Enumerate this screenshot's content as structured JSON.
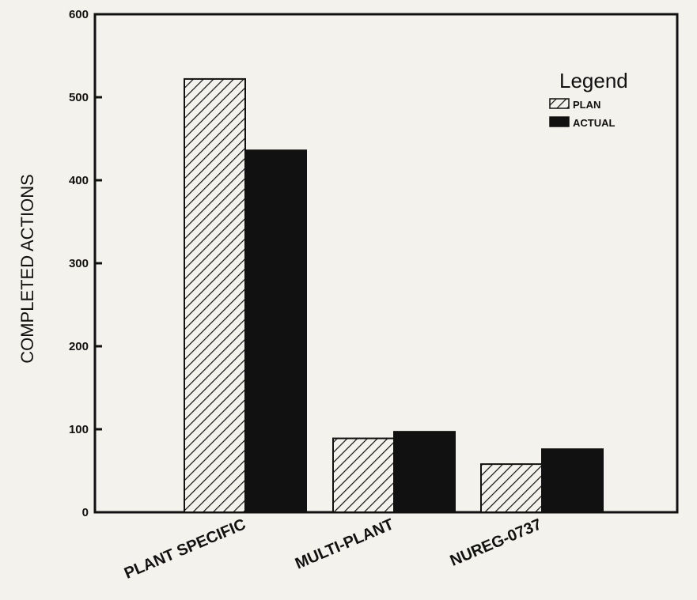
{
  "chart_data": {
    "type": "bar",
    "categories": [
      "PLANT SPECIFIC",
      "MULTI-PLANT",
      "NUREG-0737"
    ],
    "series": [
      {
        "name": "PLAN",
        "values": [
          522,
          89,
          58
        ],
        "fill": "hatched"
      },
      {
        "name": "ACTUAL",
        "values": [
          436,
          97,
          76
        ],
        "fill": "solid"
      }
    ],
    "title": "",
    "xlabel": "",
    "ylabel": "COMPLETED ACTIONS",
    "ylim": [
      0,
      600
    ],
    "yticks": [
      0,
      100,
      200,
      300,
      400,
      500,
      600
    ],
    "ytick_labels": [
      "0",
      "100",
      "200",
      "300",
      "400",
      "500",
      "600"
    ],
    "grid": false,
    "legend": {
      "title": "Legend",
      "placement": "top-right"
    }
  },
  "colors": {
    "background": "#f4f2ec",
    "ink": "#111111"
  }
}
